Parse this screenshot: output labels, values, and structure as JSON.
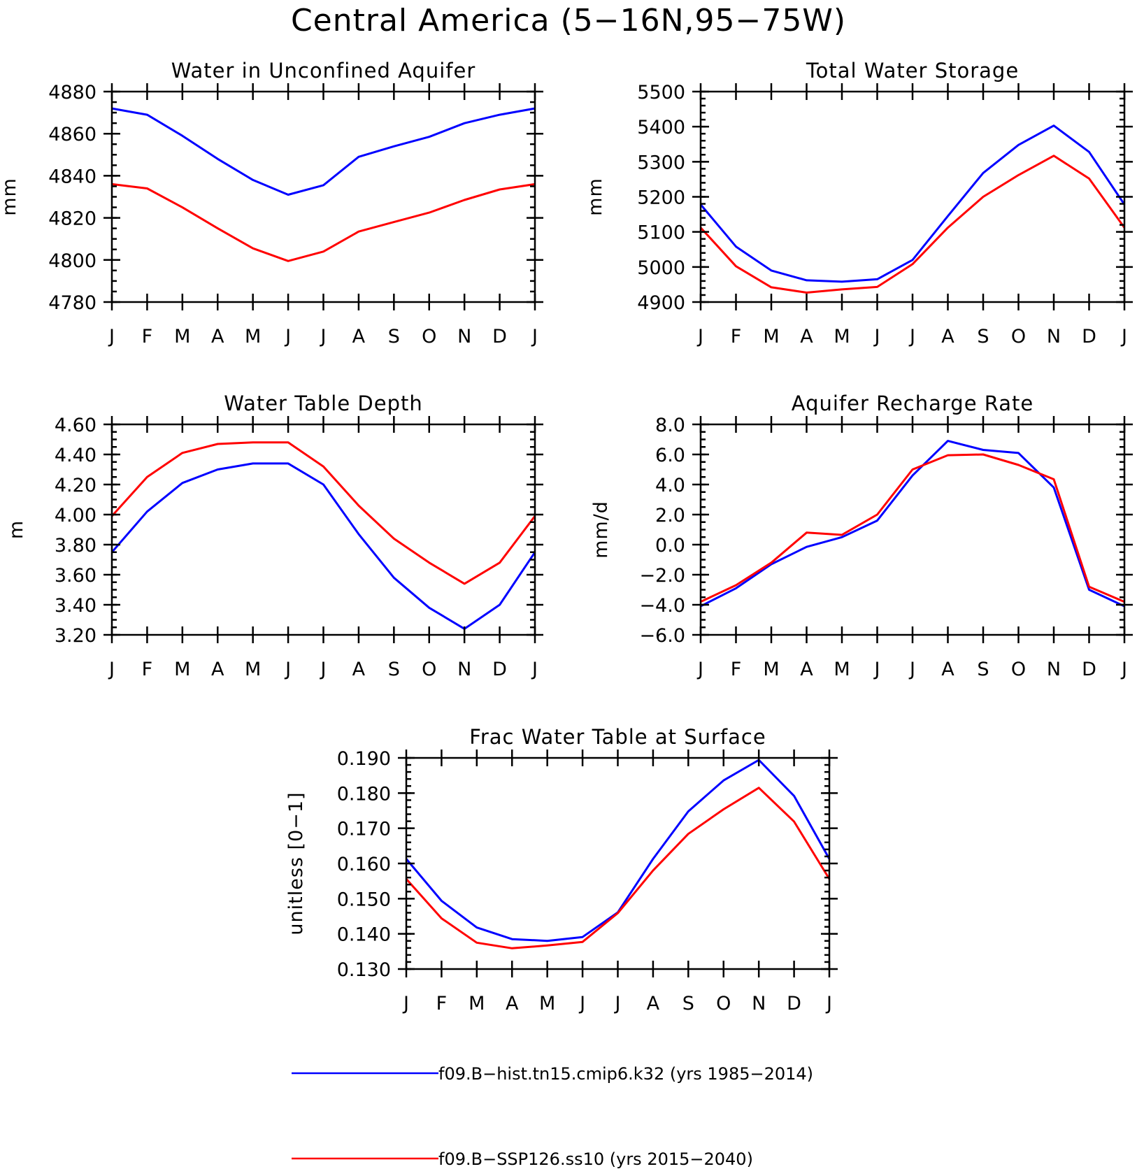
{
  "title": "Central America (5−16N,95−75W)",
  "colors": {
    "hist": "#0000ff",
    "ssp": "#ff0000"
  },
  "legend": [
    {
      "label": "f09.B−hist.tn15.cmip6.k32 (yrs 1985−2014)",
      "color": "#0000ff"
    },
    {
      "label": "f09.B−SSP126.ss10 (yrs 2015−2040)",
      "color": "#ff0000"
    }
  ],
  "chart_data": [
    {
      "type": "line",
      "title": "Water in Unconfined Aquifer",
      "ylabel": "mm",
      "x": [
        "J",
        "F",
        "M",
        "A",
        "M",
        "J",
        "J",
        "A",
        "S",
        "O",
        "N",
        "D",
        "J"
      ],
      "ylim": [
        4780,
        4880
      ],
      "yticks": [
        4780,
        4800,
        4820,
        4840,
        4860,
        4880
      ],
      "ytick_labels": [
        "4780",
        "4800",
        "4820",
        "4840",
        "4860",
        "4880"
      ],
      "minor_step": 5,
      "series": [
        {
          "color": "#0000ff",
          "values": [
            4872,
            4869,
            4859,
            4848,
            4838,
            4831,
            4835.5,
            4849,
            4854,
            4858.5,
            4865,
            4869,
            4872
          ]
        },
        {
          "color": "#ff0000",
          "values": [
            4836,
            4834,
            4825,
            4815,
            4805.5,
            4799.5,
            4804,
            4813.5,
            4818,
            4822.5,
            4828.5,
            4833.5,
            4836
          ]
        }
      ]
    },
    {
      "type": "line",
      "title": "Total Water Storage",
      "ylabel": "mm",
      "x": [
        "J",
        "F",
        "M",
        "A",
        "M",
        "J",
        "J",
        "A",
        "S",
        "O",
        "N",
        "D",
        "J"
      ],
      "ylim": [
        4900,
        5500
      ],
      "yticks": [
        4900,
        5000,
        5100,
        5200,
        5300,
        5400,
        5500
      ],
      "ytick_labels": [
        "4900",
        "5000",
        "5100",
        "5200",
        "5300",
        "5400",
        "5500"
      ],
      "minor_step": 20,
      "series": [
        {
          "color": "#0000ff",
          "values": [
            5178,
            5058,
            4990,
            4962,
            4958,
            4965,
            5020,
            5145,
            5268,
            5348,
            5403,
            5328,
            5178
          ]
        },
        {
          "color": "#ff0000",
          "values": [
            5112,
            5002,
            4942,
            4927,
            4936,
            4943,
            5008,
            5112,
            5200,
            5262,
            5317,
            5252,
            5112
          ]
        }
      ]
    },
    {
      "type": "line",
      "title": "Water Table Depth",
      "ylabel": "m",
      "x": [
        "J",
        "F",
        "M",
        "A",
        "M",
        "J",
        "J",
        "A",
        "S",
        "O",
        "N",
        "D",
        "J"
      ],
      "ylim": [
        3.2,
        4.6
      ],
      "yticks": [
        3.2,
        3.4,
        3.6,
        3.8,
        4.0,
        4.2,
        4.4,
        4.6
      ],
      "ytick_labels": [
        "3.20",
        "3.40",
        "3.60",
        "3.80",
        "4.00",
        "4.20",
        "4.40",
        "4.60"
      ],
      "minor_step": 0.05,
      "series": [
        {
          "color": "#0000ff",
          "values": [
            3.75,
            4.02,
            4.21,
            4.3,
            4.34,
            4.34,
            4.2,
            3.87,
            3.58,
            3.38,
            3.24,
            3.4,
            3.75
          ]
        },
        {
          "color": "#ff0000",
          "values": [
            3.99,
            4.25,
            4.41,
            4.47,
            4.48,
            4.48,
            4.32,
            4.06,
            3.84,
            3.68,
            3.54,
            3.68,
            3.99
          ]
        }
      ]
    },
    {
      "type": "line",
      "title": "Aquifer Recharge Rate",
      "ylabel": "mm/d",
      "x": [
        "J",
        "F",
        "M",
        "A",
        "M",
        "J",
        "J",
        "A",
        "S",
        "O",
        "N",
        "D",
        "J"
      ],
      "ylim": [
        -6,
        8
      ],
      "yticks": [
        -6,
        -4,
        -2,
        0,
        2,
        4,
        6,
        8
      ],
      "ytick_labels": [
        "−6.0",
        "−4.0",
        "−2.0",
        "0.0",
        "2.0",
        "4.0",
        "6.0",
        "8.0"
      ],
      "minor_step": 0.5,
      "series": [
        {
          "color": "#0000ff",
          "values": [
            -4.1,
            -2.9,
            -1.3,
            -0.15,
            0.5,
            1.6,
            4.6,
            6.9,
            6.3,
            6.1,
            3.8,
            -3.0,
            -4.1
          ]
        },
        {
          "color": "#ff0000",
          "values": [
            -3.8,
            -2.7,
            -1.2,
            0.8,
            0.65,
            2.0,
            5.0,
            5.95,
            6.0,
            5.3,
            4.35,
            -2.8,
            -3.8
          ]
        }
      ]
    },
    {
      "type": "line",
      "title": "Frac Water Table at Surface",
      "ylabel": "unitless [0−1]",
      "x": [
        "J",
        "F",
        "M",
        "A",
        "M",
        "J",
        "J",
        "A",
        "S",
        "O",
        "N",
        "D",
        "J"
      ],
      "ylim": [
        0.13,
        0.19
      ],
      "yticks": [
        0.13,
        0.14,
        0.15,
        0.16,
        0.17,
        0.18,
        0.19
      ],
      "ytick_labels": [
        "0.130",
        "0.140",
        "0.150",
        "0.160",
        "0.170",
        "0.180",
        "0.190"
      ],
      "minor_step": 0.002,
      "series": [
        {
          "color": "#0000ff",
          "values": [
            0.1613,
            0.1494,
            0.1418,
            0.1385,
            0.138,
            0.1391,
            0.1461,
            0.1613,
            0.1748,
            0.1836,
            0.1894,
            0.1792,
            0.1613
          ]
        },
        {
          "color": "#ff0000",
          "values": [
            0.1556,
            0.1444,
            0.1375,
            0.1359,
            0.1367,
            0.1377,
            0.1459,
            0.158,
            0.1684,
            0.1754,
            0.1815,
            0.1719,
            0.1556
          ]
        }
      ]
    }
  ]
}
